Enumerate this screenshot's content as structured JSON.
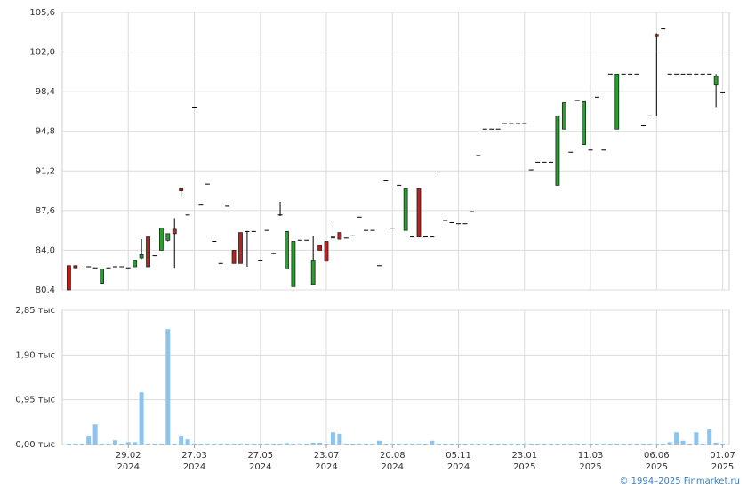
{
  "chart_data": {
    "type": "candlestick",
    "categories": [
      null,
      null,
      null,
      null,
      null,
      null,
      null,
      null,
      null,
      "29.02",
      null,
      null,
      null,
      null,
      null,
      null,
      null,
      null,
      null,
      "27.03",
      null,
      null,
      null,
      null,
      null,
      null,
      null,
      null,
      null,
      "27.05",
      null,
      null,
      null,
      null,
      null,
      null,
      null,
      null,
      null,
      "23.07",
      null,
      null,
      null,
      null,
      null,
      null,
      null,
      null,
      null,
      "20.08",
      null,
      null,
      null,
      null,
      null,
      null,
      null,
      null,
      null,
      "05.11",
      null,
      null,
      null,
      null,
      null,
      null,
      null,
      null,
      null,
      "23.01",
      null,
      null,
      null,
      null,
      null,
      null,
      null,
      null,
      null,
      "11.03",
      null,
      null,
      null,
      null,
      null,
      null,
      null,
      null,
      null,
      "06.06",
      null,
      null,
      null,
      null,
      null,
      null,
      null,
      null,
      null,
      "01.07"
    ],
    "category_years": [
      null,
      null,
      null,
      null,
      null,
      null,
      null,
      null,
      null,
      "2024",
      null,
      null,
      null,
      null,
      null,
      null,
      null,
      null,
      null,
      "2024",
      null,
      null,
      null,
      null,
      null,
      null,
      null,
      null,
      null,
      "2024",
      null,
      null,
      null,
      null,
      null,
      null,
      null,
      null,
      null,
      "2024",
      null,
      null,
      null,
      null,
      null,
      null,
      null,
      null,
      null,
      "2024",
      null,
      null,
      null,
      null,
      null,
      null,
      null,
      null,
      null,
      "2024",
      null,
      null,
      null,
      null,
      null,
      null,
      null,
      null,
      null,
      "2025",
      null,
      null,
      null,
      null,
      null,
      null,
      null,
      null,
      null,
      "2025",
      null,
      null,
      null,
      null,
      null,
      null,
      null,
      null,
      null,
      "2025",
      null,
      null,
      null,
      null,
      null,
      null,
      null,
      null,
      null,
      "2025"
    ],
    "open": [
      82.6,
      82.6,
      82.3,
      82.5,
      82.4,
      81.0,
      82.4,
      82.5,
      82.5,
      82.4,
      82.5,
      83.3,
      85.2,
      83.5,
      84.0,
      84.9,
      85.9,
      89.6,
      87.2,
      97.0,
      88.1,
      90.0,
      84.8,
      82.8,
      88.0,
      84.0,
      85.6,
      85.7,
      85.7,
      83.1,
      85.8,
      83.7,
      87.2,
      82.3,
      80.7,
      84.9,
      84.9,
      80.9,
      84.4,
      84.8,
      85.1,
      85.6,
      85.1,
      85.3,
      87.0,
      85.8,
      85.8,
      82.6,
      90.3,
      86.0,
      89.9,
      85.8,
      85.2,
      89.6,
      85.2,
      85.2,
      91.1,
      86.7,
      86.5,
      86.4,
      86.4,
      87.5,
      92.6,
      95.0,
      95.0,
      95.0,
      95.5,
      95.5,
      95.5,
      95.5,
      91.3,
      92.0,
      92.0,
      92.0,
      89.9,
      95.0,
      92.9,
      97.6,
      93.6,
      93.1,
      97.9,
      93.1,
      100.0,
      95.0,
      100.0,
      100.0,
      100.0,
      95.3,
      96.2,
      103.6,
      104.1,
      100.0,
      100.0,
      100.0,
      100.0,
      100.0,
      100.0,
      100.0,
      99.0,
      98.3
    ],
    "high": [
      82.6,
      82.6,
      82.3,
      82.5,
      82.4,
      82.3,
      82.4,
      82.5,
      82.5,
      82.4,
      83.1,
      85.0,
      85.2,
      83.5,
      86.0,
      85.5,
      86.9,
      89.7,
      87.2,
      97.0,
      88.1,
      90.0,
      84.8,
      82.8,
      88.0,
      84.0,
      85.6,
      85.7,
      85.7,
      83.1,
      85.8,
      83.7,
      88.4,
      85.7,
      84.8,
      84.9,
      84.9,
      85.3,
      84.4,
      84.8,
      86.5,
      85.6,
      85.1,
      85.3,
      87.0,
      85.8,
      85.8,
      82.6,
      90.3,
      86.0,
      89.9,
      89.6,
      85.2,
      89.6,
      85.2,
      85.2,
      91.1,
      86.7,
      86.5,
      86.4,
      86.4,
      87.5,
      92.6,
      95.0,
      95.0,
      95.0,
      95.5,
      95.5,
      95.5,
      95.5,
      91.3,
      92.0,
      92.0,
      92.0,
      96.2,
      97.4,
      92.9,
      97.6,
      97.5,
      93.1,
      97.9,
      93.1,
      100.0,
      100.0,
      100.0,
      100.0,
      100.0,
      95.3,
      96.2,
      103.7,
      104.1,
      100.0,
      100.0,
      100.0,
      100.0,
      100.0,
      100.0,
      100.0,
      100.0,
      98.3
    ],
    "low": [
      80.4,
      82.4,
      82.3,
      82.5,
      82.4,
      81.0,
      82.4,
      82.5,
      82.5,
      82.4,
      82.5,
      83.2,
      82.5,
      83.5,
      84.0,
      84.8,
      82.4,
      88.8,
      87.2,
      97.0,
      88.1,
      90.0,
      84.8,
      82.8,
      88.0,
      82.8,
      82.8,
      82.5,
      85.7,
      83.1,
      85.8,
      83.7,
      87.1,
      82.3,
      80.7,
      84.9,
      84.9,
      80.9,
      84.0,
      83.0,
      85.1,
      85.0,
      85.1,
      85.3,
      87.0,
      85.8,
      85.8,
      82.6,
      90.3,
      86.0,
      89.9,
      85.8,
      85.2,
      85.2,
      85.2,
      85.2,
      91.1,
      86.7,
      86.5,
      86.4,
      86.4,
      87.5,
      92.6,
      95.0,
      95.0,
      95.0,
      95.5,
      95.5,
      95.5,
      95.5,
      91.3,
      92.0,
      92.0,
      92.0,
      89.9,
      95.0,
      92.9,
      97.6,
      93.6,
      93.1,
      97.9,
      93.1,
      100.0,
      95.0,
      100.0,
      100.0,
      100.0,
      95.3,
      96.2,
      96.2,
      104.1,
      100.0,
      100.0,
      100.0,
      100.0,
      100.0,
      100.0,
      100.0,
      97.0,
      98.3
    ],
    "close": [
      80.4,
      82.4,
      82.3,
      82.5,
      82.4,
      82.3,
      82.4,
      82.5,
      82.5,
      82.4,
      83.1,
      83.6,
      82.5,
      83.5,
      86.0,
      85.5,
      85.5,
      89.4,
      87.2,
      97.0,
      88.1,
      90.0,
      84.8,
      82.8,
      88.0,
      82.8,
      82.8,
      85.7,
      85.7,
      83.1,
      85.8,
      83.7,
      87.2,
      85.7,
      84.8,
      84.9,
      84.9,
      83.1,
      84.0,
      83.0,
      85.2,
      85.0,
      85.1,
      85.3,
      87.0,
      85.8,
      85.8,
      82.6,
      90.3,
      86.0,
      89.9,
      89.6,
      85.2,
      85.2,
      85.2,
      85.2,
      91.1,
      86.7,
      86.5,
      86.4,
      86.4,
      87.5,
      92.6,
      95.0,
      95.0,
      95.0,
      95.5,
      95.5,
      95.5,
      95.5,
      91.3,
      92.0,
      92.0,
      92.0,
      96.2,
      97.4,
      92.9,
      97.6,
      97.5,
      93.1,
      97.9,
      93.1,
      100.0,
      100.0,
      100.0,
      100.0,
      100.0,
      95.3,
      96.2,
      103.4,
      104.1,
      100.0,
      100.0,
      100.0,
      100.0,
      100.0,
      100.0,
      100.0,
      99.8,
      98.3
    ],
    "up_color": "#22a32a",
    "down_color": "#b8211f",
    "flat_color": "#000000",
    "ylim": [
      80.4,
      105.6
    ],
    "yticks": [
      {
        "value": 80.4,
        "label": "80,4"
      },
      {
        "value": 84.0,
        "label": "84,0"
      },
      {
        "value": 87.6,
        "label": "87,6"
      },
      {
        "value": 91.2,
        "label": "91,2"
      },
      {
        "value": 94.8,
        "label": "94,8"
      },
      {
        "value": 98.4,
        "label": "98,4"
      },
      {
        "value": 102.0,
        "label": "102,0"
      },
      {
        "value": 105.6,
        "label": "105,6"
      }
    ],
    "grid": true,
    "volume": {
      "color": "#8cc4ee",
      "values": [
        0.02,
        0.02,
        0.02,
        0.19,
        0.43,
        0.02,
        0.02,
        0.09,
        0.02,
        0.05,
        0.05,
        1.11,
        0.02,
        0.02,
        0.02,
        2.45,
        0.02,
        0.19,
        0.11,
        0.02,
        0.02,
        0.02,
        0.02,
        0.02,
        0.02,
        0.02,
        0.02,
        0.02,
        0.02,
        0.02,
        0.02,
        0.02,
        0.02,
        0.03,
        0.02,
        0.02,
        0.02,
        0.04,
        0.04,
        0.02,
        0.26,
        0.23,
        0.02,
        0.02,
        0.02,
        0.02,
        0.02,
        0.08,
        0.02,
        0.02,
        0.02,
        0.02,
        0.02,
        0.02,
        0.02,
        0.08,
        0.02,
        0.02,
        0.02,
        0.02,
        0.02,
        0.02,
        0.02,
        0.02,
        0.02,
        0.02,
        0.02,
        0.02,
        0.02,
        0.02,
        0.02,
        0.02,
        0.02,
        0.02,
        0.02,
        0.02,
        0.02,
        0.02,
        0.02,
        0.02,
        0.02,
        0.02,
        0.02,
        0.02,
        0.02,
        0.02,
        0.02,
        0.02,
        0.02,
        0.02,
        0.02,
        0.05,
        0.26,
        0.08,
        0.02,
        0.26,
        0.02,
        0.32,
        0.04,
        0.02
      ],
      "ylim": [
        0,
        2.85
      ],
      "yticks": [
        {
          "value": 0,
          "label": "0,00 тыс"
        },
        {
          "value": 0.95,
          "label": "0,95 тыс"
        },
        {
          "value": 1.9,
          "label": "1,90 тыс"
        },
        {
          "value": 2.85,
          "label": "2,85 тыс"
        }
      ]
    },
    "footer": "© 1994–2025 Finmarket.ru"
  }
}
